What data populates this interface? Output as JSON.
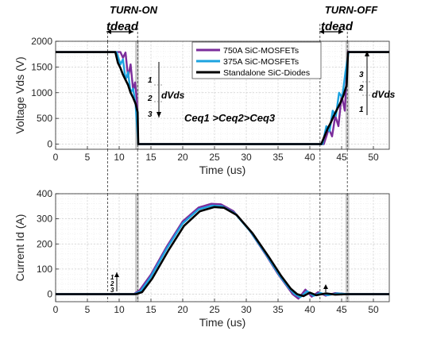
{
  "chart_data": [
    {
      "type": "line",
      "xlabel": "Time (us)",
      "ylabel": "Voltage Vds (V)",
      "xlim": [
        0,
        52.5
      ],
      "ylim": [
        -100,
        2000
      ],
      "xticks": [
        0,
        5,
        10,
        15,
        20,
        25,
        30,
        35,
        40,
        45,
        50
      ],
      "yticks": [
        0,
        500,
        1000,
        1500,
        2000
      ],
      "grid": true,
      "legend_position": "top-right",
      "series": [
        {
          "name": "750A SiC-MOSFETs",
          "color": "#7B2D9B",
          "x": [
            0,
            8,
            10.2,
            10.6,
            11.0,
            11.4,
            11.8,
            12.2,
            12.5,
            12.8,
            13.0,
            41,
            42.2,
            43.0,
            43.5,
            44.0,
            44.5,
            45.0,
            45.5,
            46.0,
            46.3,
            52.5
          ],
          "y": [
            1790,
            1790,
            1790,
            1680,
            1780,
            1300,
            1550,
            1050,
            1200,
            850,
            0,
            0,
            0,
            300,
            150,
            550,
            350,
            950,
            650,
            1800,
            1790,
            1790
          ]
        },
        {
          "name": "375A SiC-MOSFETs",
          "color": "#1CA3E0",
          "x": [
            0,
            8,
            9.6,
            10.2,
            10.6,
            11.0,
            11.4,
            11.8,
            12.2,
            12.6,
            13.0,
            41,
            42.0,
            42.6,
            43.1,
            43.6,
            44.1,
            44.6,
            45.1,
            45.6,
            46.1,
            52.5
          ],
          "y": [
            1790,
            1790,
            1790,
            1550,
            1650,
            1250,
            1400,
            1000,
            1080,
            750,
            0,
            0,
            0,
            350,
            250,
            650,
            550,
            1000,
            900,
            1400,
            1790,
            1790
          ]
        },
        {
          "name": "Standalone SiC-Diodes",
          "color": "#000000",
          "x": [
            0,
            8,
            9.4,
            9.8,
            10.2,
            10.6,
            11.0,
            11.4,
            11.8,
            12.2,
            12.6,
            12.9,
            13.0,
            41,
            41.8,
            42.3,
            42.8,
            43.3,
            43.8,
            44.3,
            44.8,
            45.3,
            45.8,
            46.0,
            52.5
          ],
          "y": [
            1790,
            1790,
            1790,
            1580,
            1480,
            1350,
            1250,
            1150,
            1000,
            900,
            780,
            620,
            0,
            0,
            0,
            150,
            300,
            420,
            560,
            680,
            800,
            950,
            1150,
            1790,
            1790
          ]
        }
      ]
    },
    {
      "type": "line",
      "xlabel": "Time (us)",
      "ylabel": "Current Id (A)",
      "xlim": [
        0,
        52.5
      ],
      "ylim": [
        -30,
        400
      ],
      "xticks": [
        0,
        5,
        10,
        15,
        20,
        25,
        30,
        35,
        40,
        45,
        50
      ],
      "yticks": [
        0,
        100,
        200,
        300,
        400
      ],
      "grid": true,
      "series": [
        {
          "name": "750A SiC-MOSFETs",
          "color": "#7B2D9B",
          "x": [
            0,
            12.3,
            13.2,
            15,
            17.5,
            20,
            22.5,
            24.5,
            26,
            28,
            30.5,
            33,
            35,
            36.5,
            37.3,
            38.2,
            39.3,
            40.3,
            41.3,
            42.5,
            44,
            46,
            52.5
          ],
          "y": [
            0,
            0,
            15,
            78,
            190,
            290,
            345,
            360,
            358,
            330,
            255,
            160,
            80,
            28,
            0,
            -18,
            18,
            -10,
            8,
            -6,
            4,
            0,
            0
          ]
        },
        {
          "name": "375A SiC-MOSFETs",
          "color": "#1CA3E0",
          "x": [
            0,
            12.4,
            13.4,
            15,
            17.5,
            20,
            22.5,
            24.7,
            26.2,
            28.2,
            30.7,
            33.2,
            35.2,
            36.7,
            37.6,
            38.5,
            39.6,
            40.6,
            41.6,
            42.8,
            44.3,
            46,
            52.5
          ],
          "y": [
            0,
            0,
            12,
            70,
            182,
            282,
            338,
            353,
            350,
            322,
            248,
            155,
            76,
            25,
            0,
            -12,
            12,
            -7,
            5,
            -4,
            3,
            0,
            0
          ]
        },
        {
          "name": "Standalone SiC-Diodes",
          "color": "#000000",
          "x": [
            0,
            12.6,
            13.6,
            15.2,
            17.7,
            20.2,
            22.7,
            25,
            26.5,
            28.5,
            31,
            33.5,
            35.5,
            37,
            38,
            39,
            40,
            41,
            42.5,
            44,
            46,
            52.5
          ],
          "y": [
            0,
            0,
            8,
            62,
            172,
            272,
            330,
            347,
            344,
            315,
            242,
            150,
            72,
            22,
            0,
            -8,
            6,
            -4,
            3,
            -2,
            0,
            0
          ]
        }
      ]
    }
  ],
  "annotations": {
    "turn_on": "TURN-ON",
    "turn_off": "TURN-OFF",
    "tdead_on": "tdead",
    "tdead_off": "tdead",
    "dvds_on": "dVds",
    "dvds_off": "dVds",
    "ceq": "Ceq1 >Ceq2>Ceq3",
    "steps_on": [
      "1",
      "2",
      "3"
    ],
    "steps_off": [
      "3",
      "2",
      "1"
    ],
    "steps_current": [
      "1",
      "2",
      "3"
    ]
  }
}
